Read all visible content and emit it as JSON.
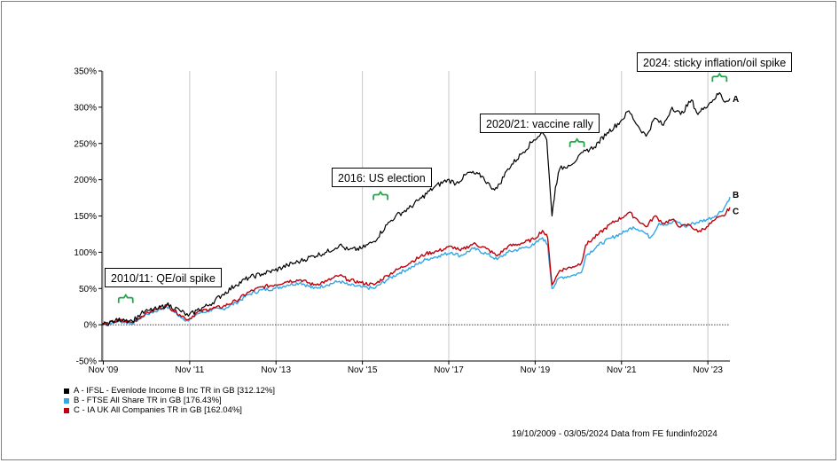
{
  "chart_data": {
    "type": "line",
    "ylim": [
      -50,
      350
    ],
    "y_ticks": [
      "350%",
      "300%",
      "250%",
      "200%",
      "150%",
      "100%",
      "50%",
      "0%",
      "-50%"
    ],
    "y_tick_values": [
      350,
      300,
      250,
      200,
      150,
      100,
      50,
      0,
      -50
    ],
    "x_ticks": [
      "Nov '09",
      "Nov '11",
      "Nov '13",
      "Nov '15",
      "Nov '17",
      "Nov '19",
      "Nov '21",
      "Nov '23"
    ],
    "x_tick_years": [
      2009.83,
      2011.83,
      2013.83,
      2015.83,
      2017.83,
      2019.83,
      2021.83,
      2023.83
    ],
    "x_range": [
      2009.8,
      2024.34
    ],
    "grid": "vertical",
    "legend_position": "bottom-left",
    "series": [
      {
        "name": "A - IFSL - Evenlode Income B Inc TR in GB [312.12%]",
        "end_label": "A",
        "color": "#000000",
        "points": [
          [
            2009.8,
            0
          ],
          [
            2010.1,
            5
          ],
          [
            2010.3,
            8
          ],
          [
            2010.5,
            5
          ],
          [
            2010.7,
            15
          ],
          [
            2010.9,
            20
          ],
          [
            2011.1,
            22
          ],
          [
            2011.3,
            28
          ],
          [
            2011.6,
            20
          ],
          [
            2011.8,
            12
          ],
          [
            2012.0,
            20
          ],
          [
            2012.3,
            28
          ],
          [
            2012.6,
            42
          ],
          [
            2012.9,
            55
          ],
          [
            2013.2,
            65
          ],
          [
            2013.5,
            70
          ],
          [
            2013.8,
            75
          ],
          [
            2014.1,
            82
          ],
          [
            2014.4,
            88
          ],
          [
            2014.7,
            95
          ],
          [
            2015.0,
            100
          ],
          [
            2015.3,
            110
          ],
          [
            2015.5,
            103
          ],
          [
            2015.8,
            105
          ],
          [
            2016.1,
            115
          ],
          [
            2016.4,
            138
          ],
          [
            2016.6,
            150
          ],
          [
            2016.9,
            160
          ],
          [
            2017.2,
            175
          ],
          [
            2017.5,
            190
          ],
          [
            2017.8,
            200
          ],
          [
            2018.0,
            195
          ],
          [
            2018.3,
            210
          ],
          [
            2018.6,
            205
          ],
          [
            2018.8,
            190
          ],
          [
            2018.95,
            188
          ],
          [
            2019.2,
            215
          ],
          [
            2019.5,
            235
          ],
          [
            2019.8,
            255
          ],
          [
            2020.0,
            265
          ],
          [
            2020.1,
            255
          ],
          [
            2020.15,
            210
          ],
          [
            2020.22,
            150
          ],
          [
            2020.3,
            190
          ],
          [
            2020.4,
            215
          ],
          [
            2020.6,
            220
          ],
          [
            2020.8,
            228
          ],
          [
            2021.0,
            240
          ],
          [
            2021.2,
            245
          ],
          [
            2021.5,
            265
          ],
          [
            2021.8,
            280
          ],
          [
            2022.0,
            295
          ],
          [
            2022.2,
            275
          ],
          [
            2022.4,
            260
          ],
          [
            2022.6,
            285
          ],
          [
            2022.8,
            275
          ],
          [
            2023.0,
            300
          ],
          [
            2023.2,
            290
          ],
          [
            2023.45,
            310
          ],
          [
            2023.6,
            290
          ],
          [
            2023.75,
            300
          ],
          [
            2023.95,
            310
          ],
          [
            2024.1,
            320
          ],
          [
            2024.2,
            308
          ],
          [
            2024.34,
            312
          ]
        ]
      },
      {
        "name": "B - FTSE All Share TR in GB [176.43%]",
        "end_label": "B",
        "color": "#33a7e8",
        "points": [
          [
            2009.8,
            0
          ],
          [
            2010.2,
            5
          ],
          [
            2010.5,
            2
          ],
          [
            2010.8,
            14
          ],
          [
            2011.1,
            20
          ],
          [
            2011.3,
            25
          ],
          [
            2011.6,
            12
          ],
          [
            2011.8,
            5
          ],
          [
            2012.0,
            15
          ],
          [
            2012.3,
            20
          ],
          [
            2012.6,
            22
          ],
          [
            2012.9,
            30
          ],
          [
            2013.2,
            42
          ],
          [
            2013.5,
            48
          ],
          [
            2013.8,
            50
          ],
          [
            2014.1,
            55
          ],
          [
            2014.4,
            58
          ],
          [
            2014.7,
            50
          ],
          [
            2015.0,
            55
          ],
          [
            2015.3,
            60
          ],
          [
            2015.5,
            55
          ],
          [
            2015.8,
            52
          ],
          [
            2016.1,
            50
          ],
          [
            2016.4,
            62
          ],
          [
            2016.7,
            72
          ],
          [
            2017.0,
            80
          ],
          [
            2017.3,
            90
          ],
          [
            2017.6,
            95
          ],
          [
            2017.9,
            100
          ],
          [
            2018.1,
            95
          ],
          [
            2018.4,
            105
          ],
          [
            2018.7,
            98
          ],
          [
            2018.95,
            90
          ],
          [
            2019.2,
            100
          ],
          [
            2019.5,
            105
          ],
          [
            2019.8,
            110
          ],
          [
            2020.0,
            120
          ],
          [
            2020.12,
            110
          ],
          [
            2020.22,
            50
          ],
          [
            2020.4,
            65
          ],
          [
            2020.7,
            68
          ],
          [
            2020.9,
            72
          ],
          [
            2021.0,
            95
          ],
          [
            2021.3,
            110
          ],
          [
            2021.6,
            120
          ],
          [
            2021.9,
            128
          ],
          [
            2022.1,
            135
          ],
          [
            2022.3,
            130
          ],
          [
            2022.5,
            120
          ],
          [
            2022.7,
            140
          ],
          [
            2022.9,
            138
          ],
          [
            2023.1,
            143
          ],
          [
            2023.3,
            135
          ],
          [
            2023.5,
            140
          ],
          [
            2023.8,
            145
          ],
          [
            2024.0,
            150
          ],
          [
            2024.2,
            160
          ],
          [
            2024.34,
            176
          ]
        ]
      },
      {
        "name": "C - IA UK All Companies TR in GB [162.04%]",
        "end_label": "C",
        "color": "#c0000b",
        "points": [
          [
            2009.8,
            0
          ],
          [
            2010.2,
            6
          ],
          [
            2010.5,
            3
          ],
          [
            2010.8,
            15
          ],
          [
            2011.1,
            22
          ],
          [
            2011.3,
            27
          ],
          [
            2011.6,
            14
          ],
          [
            2011.8,
            7
          ],
          [
            2012.0,
            17
          ],
          [
            2012.3,
            22
          ],
          [
            2012.6,
            25
          ],
          [
            2012.9,
            33
          ],
          [
            2013.2,
            45
          ],
          [
            2013.5,
            52
          ],
          [
            2013.8,
            55
          ],
          [
            2014.1,
            60
          ],
          [
            2014.4,
            62
          ],
          [
            2014.7,
            55
          ],
          [
            2015.0,
            60
          ],
          [
            2015.3,
            68
          ],
          [
            2015.5,
            62
          ],
          [
            2015.8,
            58
          ],
          [
            2016.1,
            55
          ],
          [
            2016.4,
            68
          ],
          [
            2016.7,
            78
          ],
          [
            2017.0,
            88
          ],
          [
            2017.3,
            98
          ],
          [
            2017.6,
            102
          ],
          [
            2017.9,
            108
          ],
          [
            2018.1,
            102
          ],
          [
            2018.4,
            112
          ],
          [
            2018.7,
            105
          ],
          [
            2018.95,
            95
          ],
          [
            2019.2,
            108
          ],
          [
            2019.5,
            112
          ],
          [
            2019.8,
            118
          ],
          [
            2020.0,
            130
          ],
          [
            2020.12,
            120
          ],
          [
            2020.22,
            55
          ],
          [
            2020.4,
            75
          ],
          [
            2020.7,
            80
          ],
          [
            2020.9,
            85
          ],
          [
            2021.0,
            110
          ],
          [
            2021.3,
            125
          ],
          [
            2021.6,
            140
          ],
          [
            2021.9,
            150
          ],
          [
            2022.0,
            155
          ],
          [
            2022.2,
            145
          ],
          [
            2022.4,
            135
          ],
          [
            2022.6,
            150
          ],
          [
            2022.8,
            140
          ],
          [
            2023.0,
            145
          ],
          [
            2023.2,
            135
          ],
          [
            2023.4,
            138
          ],
          [
            2023.6,
            128
          ],
          [
            2023.8,
            135
          ],
          [
            2024.0,
            145
          ],
          [
            2024.2,
            150
          ],
          [
            2024.34,
            162
          ]
        ]
      }
    ],
    "annotations": [
      {
        "text": "2010/11: QE/oil spike",
        "x": 2010.35,
        "y": 30
      },
      {
        "text": "2016: US election",
        "x": 2016.25,
        "y": 172
      },
      {
        "text": "2020/21: vaccine rally",
        "x": 2020.8,
        "y": 245
      },
      {
        "text": "2024: sticky inflation/oil spike",
        "x": 2024.1,
        "y": 335
      }
    ]
  },
  "source": "19/10/2009 - 03/05/2024 Data from FE fundinfo2024"
}
